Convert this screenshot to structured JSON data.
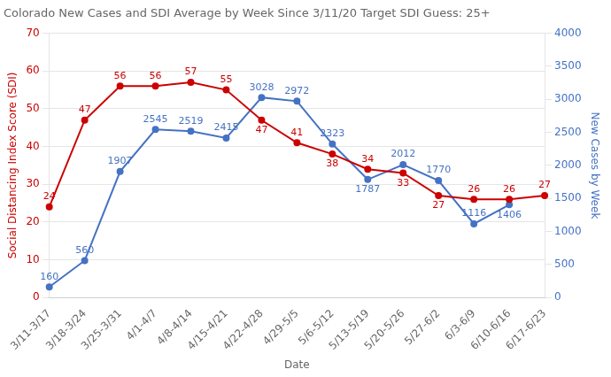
{
  "chart_data": {
    "type": "line",
    "title": "Colorado New Cases and SDI Average by Week Since 3/11/20 Target SDI Guess: 25+",
    "xlabel": "Date",
    "ylabel": "Social Distancing Index Score (SDI)",
    "y2label": "New Cases by Week",
    "categories": [
      "3/11-3/17",
      "3/18-3/24",
      "3/25-3/31",
      "4/1-4/7",
      "4/8-4/14",
      "4/15-4/21",
      "4/22-4/28",
      "4/29-5/5",
      "5/6-5/12",
      "5/13-5/19",
      "5/20-5/26",
      "5/27-6/2",
      "6/3-6/9",
      "6/10-6/16",
      "6/17-6/23"
    ],
    "series": [
      {
        "color": "#cc0000",
        "values": [
          24,
          47,
          56,
          56,
          57,
          55,
          47,
          41,
          38,
          34,
          33,
          27,
          26,
          26,
          27
        ]
      },
      {
        "color": "#4472c4",
        "axis": "y2",
        "values": [
          160,
          560,
          1907,
          2545,
          2519,
          2415,
          3028,
          2972,
          2323,
          1787,
          2012,
          1770,
          1116,
          1406,
          null
        ]
      }
    ],
    "ylim": [
      0,
      70
    ],
    "yticks": [
      0,
      10,
      20,
      30,
      40,
      50,
      60,
      70
    ],
    "y2lim": [
      0,
      4000
    ],
    "y2ticks": [
      0,
      500,
      1000,
      1500,
      2000,
      2500,
      3000,
      3500,
      4000
    ],
    "grid": true,
    "data_labels": true
  }
}
